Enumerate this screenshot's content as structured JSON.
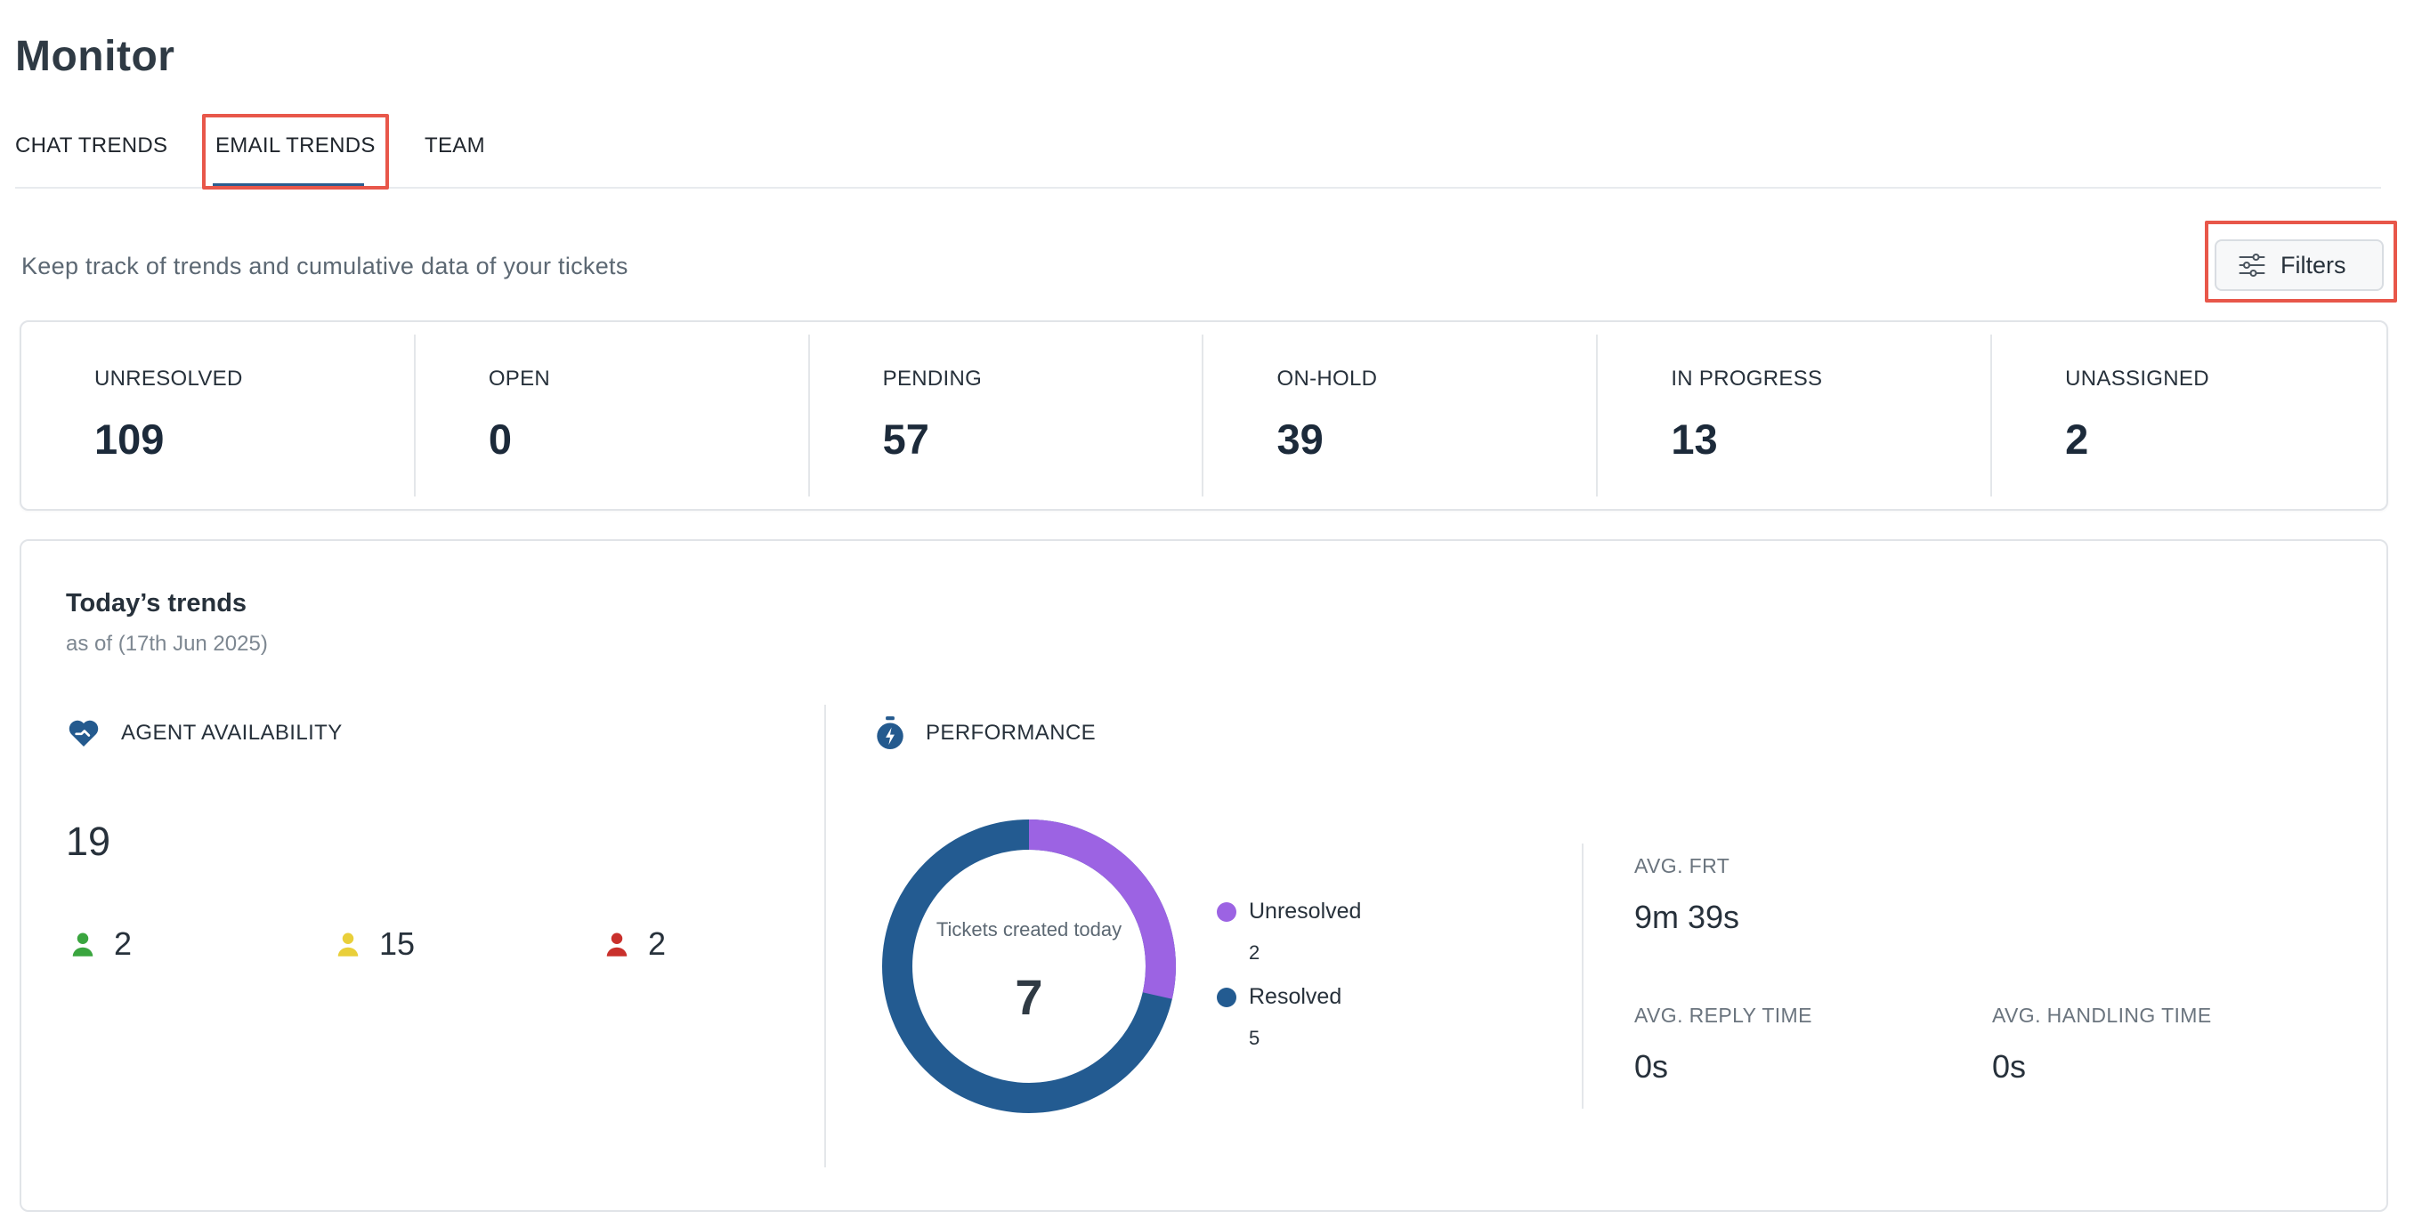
{
  "page": {
    "title": "Monitor"
  },
  "tabs": [
    {
      "label": "CHAT TRENDS"
    },
    {
      "label": "EMAIL TRENDS",
      "active": true
    },
    {
      "label": "TEAM"
    }
  ],
  "header": {
    "subtitle": "Keep track of trends and cumulative data of your tickets",
    "filters_label": "Filters"
  },
  "stats": [
    {
      "label": "UNRESOLVED",
      "value": "109"
    },
    {
      "label": "OPEN",
      "value": "0"
    },
    {
      "label": "PENDING",
      "value": "57"
    },
    {
      "label": "ON-HOLD",
      "value": "39"
    },
    {
      "label": "IN PROGRESS",
      "value": "13"
    },
    {
      "label": "UNASSIGNED",
      "value": "2"
    }
  ],
  "trends": {
    "title": "Today’s trends",
    "date": "as of (17th Jun 2025)",
    "agent_availability": {
      "label": "AGENT AVAILABILITY",
      "icon": "heart-hand-icon",
      "total": "19",
      "online": "2",
      "away": "15",
      "busy": "2",
      "colors": {
        "online": "#3aa53f",
        "away": "#e9cf3a",
        "busy": "#c9302c"
      }
    },
    "performance": {
      "label": "PERFORMANCE",
      "icon": "stopwatch-icon",
      "donut_caption": "Tickets created today",
      "donut_total": "7",
      "unresolved_label": "Unresolved",
      "unresolved_count": "2",
      "resolved_label": "Resolved",
      "resolved_count": "5",
      "colors": {
        "unresolved": "#9c63e3",
        "resolved": "#235b91"
      },
      "avg_frt_label": "AVG. FRT",
      "avg_frt_value": "9m 39s",
      "avg_reply_label": "AVG. REPLY TIME",
      "avg_reply_value": "0s",
      "avg_handling_label": "AVG. HANDLING TIME",
      "avg_handling_value": "0s"
    }
  }
}
